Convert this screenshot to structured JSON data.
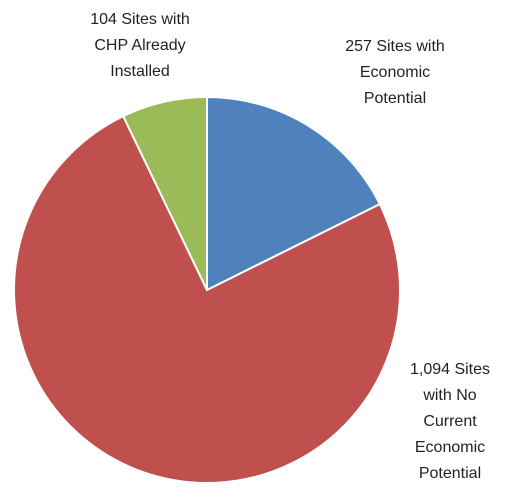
{
  "chart_data": {
    "type": "pie",
    "values": [
      257,
      1094,
      104
    ],
    "value_labels": [
      [
        "257 Sites with",
        "Economic",
        "Potential"
      ],
      [
        "1,094 Sites",
        "with No",
        "Current",
        "Economic",
        "Potential"
      ],
      [
        "104 Sites with",
        "CHP Already",
        "Installed"
      ]
    ],
    "colors": [
      "#4f81bd",
      "#c0504d",
      "#9bbb59"
    ]
  }
}
